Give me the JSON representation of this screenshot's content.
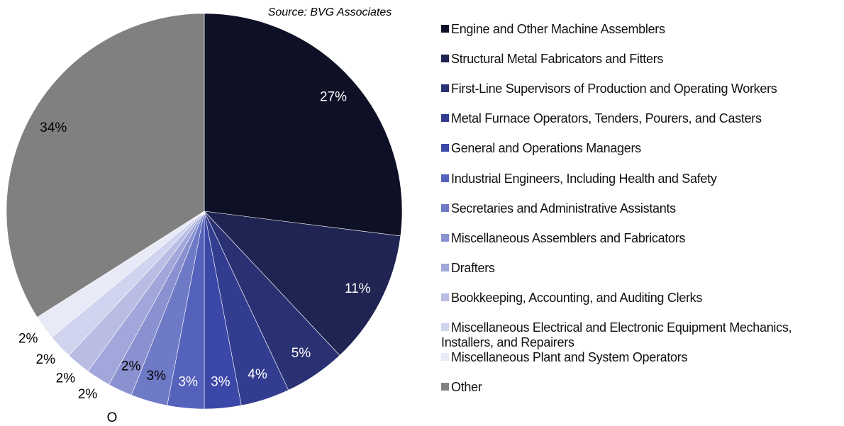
{
  "chart_data": {
    "type": "pie",
    "source": "Source: BVG Associates",
    "annotation": "O",
    "categories": [
      "Engine and Other Machine Assemblers",
      "Structural Metal Fabricators and Fitters",
      "First-Line Supervisors of Production and Operating Workers",
      "Metal Furnace Operators, Tenders, Pourers, and Casters",
      "General and Operations Managers",
      "Industrial Engineers, Including Health and Safety",
      "Secretaries and Administrative Assistants",
      "Miscellaneous Assemblers and Fabricators",
      "Drafters",
      "Bookkeeping, Accounting, and Auditing Clerks",
      "Miscellaneous Electrical and Electronic Equipment Mechanics, Installers, and Repairers",
      "Miscellaneous Plant and System Operators",
      "Other"
    ],
    "values": [
      27,
      11,
      5,
      4,
      3,
      3,
      3,
      2,
      2,
      2,
      2,
      2,
      34
    ],
    "value_labels": [
      "27%",
      "11%",
      "5%",
      "4%",
      "3%",
      "3%",
      "3%",
      "2%",
      "2%",
      "2%",
      "2%",
      "2%",
      "34%"
    ],
    "colors": [
      "#0e1026",
      "#1f2452",
      "#2a3173",
      "#333d8f",
      "#3c48a7",
      "#5562bc",
      "#6f7ac7",
      "#8991d0",
      "#a1a7da",
      "#b9bde3",
      "#d1d4ee",
      "#e9eaf7",
      "#808080"
    ],
    "legend": "right"
  }
}
